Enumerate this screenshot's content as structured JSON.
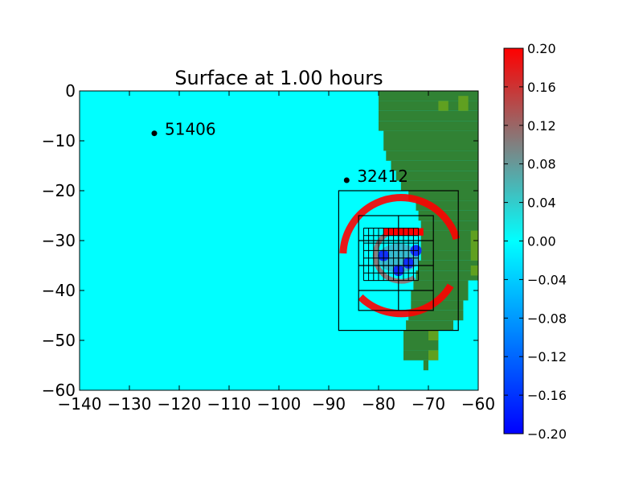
{
  "chart_data": {
    "type": "heatmap",
    "title": "Surface at 1.00 hours",
    "xlim": [
      -140,
      -60
    ],
    "ylim": [
      -60,
      0
    ],
    "x_ticks": [
      -140,
      -130,
      -120,
      -110,
      -100,
      -90,
      -80,
      -70,
      -60
    ],
    "y_ticks": [
      0,
      -10,
      -20,
      -30,
      -40,
      -50,
      -60
    ],
    "x_tick_labels": [
      "−140",
      "−130",
      "−120",
      "−110",
      "−100",
      "−90",
      "−80",
      "−70",
      "−60"
    ],
    "y_tick_labels": [
      "0",
      "−10",
      "−20",
      "−30",
      "−40",
      "−50",
      "−60"
    ],
    "colorbar": {
      "min": -0.2,
      "max": 0.2,
      "ticks": [
        0.2,
        0.16,
        0.12,
        0.08,
        0.04,
        0.0,
        -0.04,
        -0.08,
        -0.12,
        -0.16,
        -0.2
      ],
      "tick_labels": [
        "0.20",
        "0.16",
        "0.12",
        "0.08",
        "0.04",
        "0.00",
        "−0.04",
        "−0.08",
        "−0.12",
        "−0.16",
        "−0.20"
      ],
      "colors": [
        "#0000ff",
        "#00ffff",
        "#808080",
        "#ff0000"
      ]
    },
    "gauges": [
      {
        "label": "51406",
        "x": -125,
        "y": -8.5
      },
      {
        "label": "32412",
        "x": -86.4,
        "y": -17.9
      }
    ],
    "refinement_boxes": [
      {
        "x1": -88,
        "x2": -64,
        "y1": -48,
        "y2": -20
      },
      {
        "x1": -84,
        "x2": -69,
        "y1": -44,
        "y2": -25
      }
    ],
    "fine_grid_region": {
      "x1": -83,
      "x2": -72,
      "y1": -38,
      "y2": -27.5
    },
    "land_color": "#318234",
    "highland_color": "#60a020",
    "ocean_color": "#00ffff"
  }
}
